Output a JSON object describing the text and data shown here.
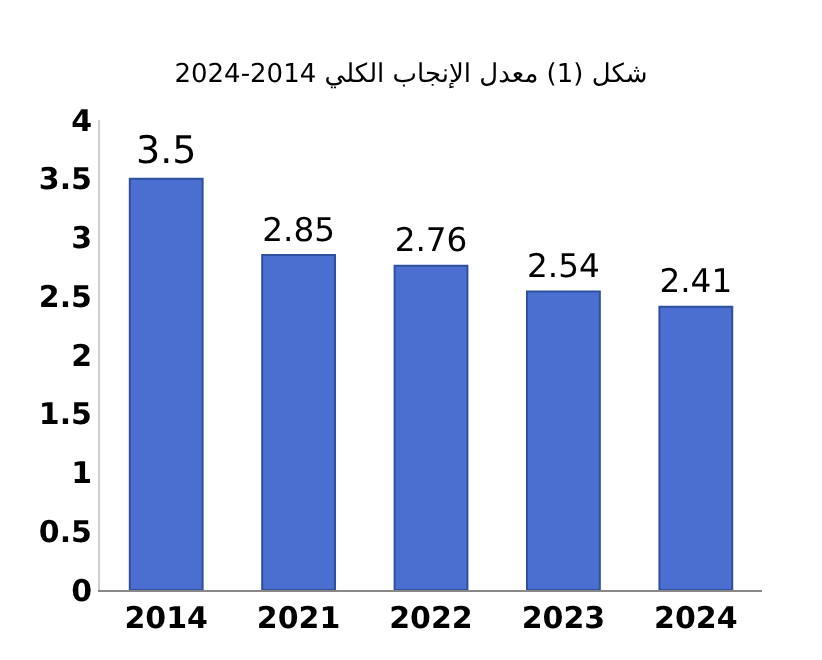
{
  "chart_data": {
    "type": "bar",
    "title": "شكل (1) معدل الإنجاب الكلي 2014-2024",
    "categories": [
      "2014",
      "2021",
      "2022",
      "2023",
      "2024"
    ],
    "values": [
      3.5,
      2.85,
      2.76,
      2.54,
      2.41
    ],
    "color": "#4a6fd0",
    "ylim": [
      0,
      4
    ],
    "yticks": [
      0,
      0.5,
      1,
      1.5,
      2,
      2.5,
      3,
      3.5,
      4
    ],
    "grid": false,
    "data_labels": true
  }
}
